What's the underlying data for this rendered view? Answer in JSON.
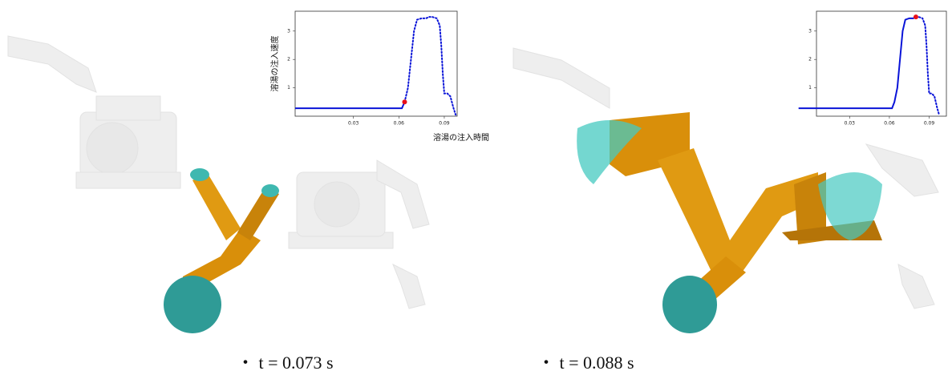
{
  "chart_data": [
    {
      "type": "line",
      "y_label": "溶湯の注入速度",
      "x_label": "溶湯の注入時間",
      "xlim": [
        -0.0085,
        0.0985
      ],
      "ylim": [
        0,
        3.7
      ],
      "xticks": [
        0.03,
        0.06,
        0.09
      ],
      "yticks": [
        1,
        2,
        3
      ],
      "x": [
        -0.0085,
        0.062,
        0.0638,
        0.066,
        0.068,
        0.07,
        0.072,
        0.075,
        0.078,
        0.08,
        0.082,
        0.085,
        0.087,
        0.088,
        0.089,
        0.09,
        0.092,
        0.094,
        0.096,
        0.0975
      ],
      "series": [
        {
          "color": "#0a14d8",
          "style": "solid",
          "values": [
            0.28,
            0.28,
            0.5,
            null,
            null,
            null,
            null,
            null,
            null,
            null,
            null,
            null,
            null,
            null,
            null,
            null,
            null,
            null,
            null,
            null
          ]
        },
        {
          "color": "#0a14d8",
          "style": "dotted",
          "values": [
            null,
            null,
            0.5,
            1.0,
            2.0,
            3.0,
            3.4,
            3.45,
            3.45,
            3.5,
            3.5,
            3.45,
            3.2,
            2.5,
            1.5,
            0.8,
            0.8,
            0.7,
            0.3,
            0.05
          ]
        },
        {
          "color": "#e8101a",
          "style": "marker",
          "values": [
            null,
            null,
            0.5,
            null,
            null,
            null,
            null,
            null,
            null,
            null,
            null,
            null,
            null,
            null,
            null,
            null,
            null,
            null,
            null,
            null
          ]
        }
      ]
    },
    {
      "type": "line",
      "xlim": [
        0.005,
        0.103
      ],
      "ylim": [
        0,
        3.7
      ],
      "xticks": [
        0.03,
        0.06,
        0.09
      ],
      "yticks": [
        1,
        2,
        3
      ],
      "x": [
        -0.0085,
        0.062,
        0.0638,
        0.066,
        0.068,
        0.07,
        0.072,
        0.075,
        0.078,
        0.08,
        0.082,
        0.085,
        0.087,
        0.088,
        0.089,
        0.09,
        0.092,
        0.094,
        0.096,
        0.0975
      ],
      "series": [
        {
          "color": "#0a14d8",
          "style": "solid",
          "values": [
            0.28,
            0.28,
            0.5,
            1.0,
            2.0,
            3.0,
            3.4,
            3.45,
            3.45,
            3.5,
            null,
            null,
            null,
            null,
            null,
            null,
            null,
            null,
            null,
            null
          ]
        },
        {
          "color": "#0a14d8",
          "style": "dotted",
          "values": [
            null,
            null,
            null,
            null,
            null,
            null,
            null,
            null,
            null,
            3.5,
            3.5,
            3.45,
            3.2,
            2.5,
            1.5,
            0.8,
            0.8,
            0.7,
            0.3,
            0.05
          ]
        },
        {
          "color": "#e8101a",
          "style": "marker",
          "values": [
            null,
            null,
            null,
            null,
            null,
            null,
            null,
            null,
            null,
            3.5,
            null,
            null,
            null,
            null,
            null,
            null,
            null,
            null,
            null,
            null
          ]
        }
      ]
    }
  ],
  "captions": [
    "・ t = 0.073 s",
    "・ t = 0.088 s"
  ]
}
